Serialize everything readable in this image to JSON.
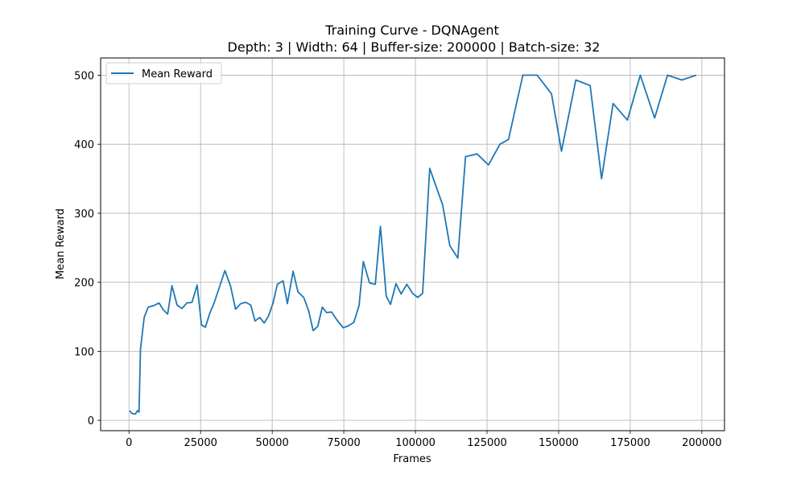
{
  "chart_data": {
    "type": "line",
    "title": "Training Curve - DQNAgent",
    "subtitle": "Depth: 3 | Width: 64 | Buffer-size: 200000 | Batch-size: 32",
    "xlabel": "Frames",
    "ylabel": "Mean Reward",
    "xlim": [
      -9900,
      207900
    ],
    "ylim": [
      -15,
      525
    ],
    "xticks": [
      0,
      25000,
      50000,
      75000,
      100000,
      125000,
      150000,
      175000,
      200000
    ],
    "xtick_labels": [
      "0",
      "25000",
      "50000",
      "75000",
      "100000",
      "125000",
      "150000",
      "175000",
      "200000"
    ],
    "yticks": [
      0,
      100,
      200,
      300,
      400,
      500
    ],
    "ytick_labels": [
      "0",
      "100",
      "200",
      "300",
      "400",
      "500"
    ],
    "grid": true,
    "legend_position": "top-left",
    "series": [
      {
        "name": "Mean Reward",
        "color": "#1f77b4",
        "x": [
          200,
          1000,
          2200,
          3000,
          3500,
          4000,
          5300,
          6700,
          8500,
          10500,
          12000,
          13500,
          15000,
          16800,
          18500,
          20200,
          22000,
          23800,
          25300,
          26700,
          28200,
          29800,
          31800,
          33500,
          35500,
          37200,
          39000,
          40800,
          42500,
          44000,
          45700,
          47200,
          48700,
          50300,
          51800,
          53800,
          55300,
          57300,
          59000,
          61000,
          62700,
          64300,
          65900,
          67500,
          69000,
          70700,
          72500,
          74800,
          76600,
          78500,
          80300,
          81800,
          84000,
          86000,
          87800,
          89800,
          91300,
          93200,
          95000,
          97000,
          99000,
          100800,
          102500,
          105000,
          109500,
          112000,
          114800,
          117500,
          121500,
          125500,
          129500,
          132500,
          137500,
          142500,
          147500,
          151000,
          156000,
          161000,
          165000,
          169000,
          174000,
          178500,
          183500,
          188000,
          193000,
          198000
        ],
        "y": [
          14,
          10,
          9,
          14,
          12,
          103,
          149,
          164,
          166,
          170,
          160,
          154,
          195,
          167,
          162,
          170,
          171,
          196,
          138,
          135,
          155,
          171,
          196,
          217,
          194,
          161,
          169,
          171,
          167,
          144,
          149,
          141,
          151,
          170,
          197,
          202,
          169,
          216,
          186,
          178,
          159,
          130,
          136,
          164,
          156,
          157,
          146,
          134,
          137,
          142,
          166,
          230,
          199,
          197,
          281,
          180,
          168,
          198,
          183,
          197,
          184,
          178,
          184,
          365,
          312,
          253,
          235,
          382,
          386,
          370,
          400,
          407,
          500,
          500,
          473,
          390,
          493,
          485,
          350,
          459,
          435,
          500,
          438,
          500,
          493,
          500
        ]
      }
    ]
  }
}
